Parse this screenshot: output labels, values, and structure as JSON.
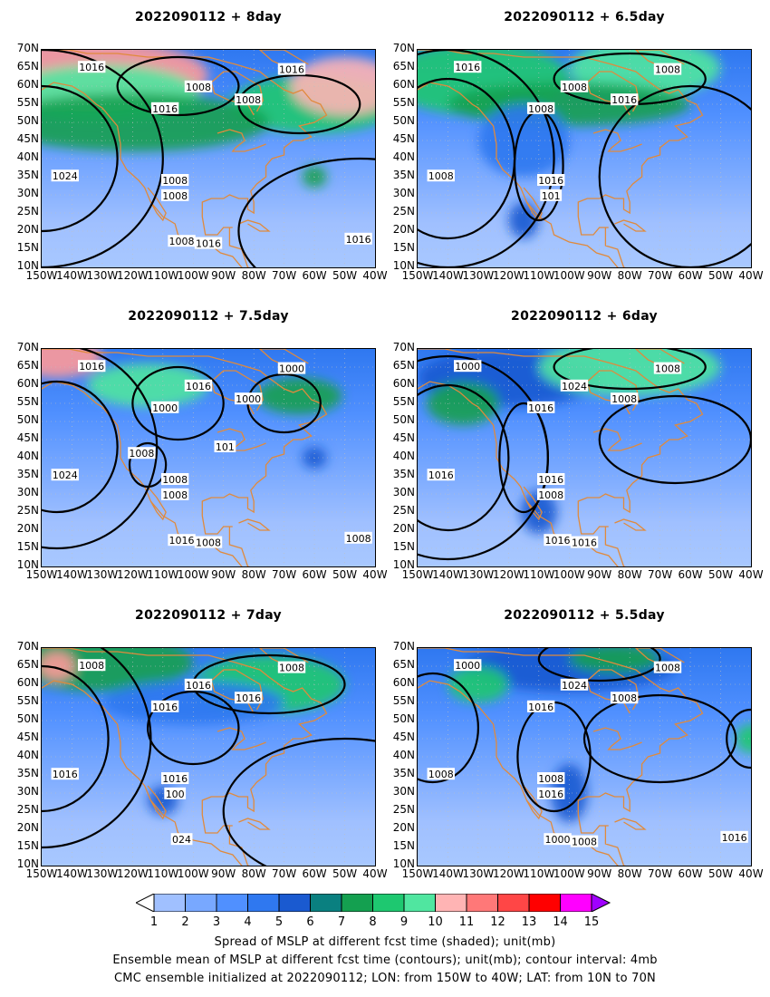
{
  "chart_data": {
    "type": "heatmap",
    "panels": [
      {
        "title": "2022090112 + 8day",
        "contour_labels": [
          "1016",
          "1008",
          "1016",
          "1008",
          "1016",
          "1024",
          "1008",
          "1008",
          "1008",
          "1016",
          "1016"
        ]
      },
      {
        "title": "2022090112 + 6.5day",
        "contour_labels": [
          "1016",
          "1008",
          "1008",
          "1016",
          "1008",
          "1008",
          "1016",
          "101"
        ]
      },
      {
        "title": "2022090112 + 7.5day",
        "contour_labels": [
          "1016",
          "1016",
          "1000",
          "1000",
          "1000",
          "1024",
          "1008",
          "1008",
          "1016",
          "1008",
          "1008",
          "1008",
          "101"
        ]
      },
      {
        "title": "2022090112 + 6day",
        "contour_labels": [
          "1000",
          "1024",
          "1016",
          "1008",
          "1008",
          "1016",
          "1016",
          "1008",
          "1016",
          "1016"
        ]
      },
      {
        "title": "2022090112 + 7day",
        "contour_labels": [
          "1008",
          "1016",
          "1016",
          "1016",
          "1008",
          "1016",
          "1016",
          "100",
          "024"
        ]
      },
      {
        "title": "2022090112 + 5.5day",
        "contour_labels": [
          "1000",
          "1024",
          "1016",
          "1008",
          "1008",
          "1008",
          "1008",
          "1016",
          "1000",
          "1008",
          "1016"
        ]
      }
    ],
    "lon_ticks": [
      "150W",
      "140W",
      "130W",
      "120W",
      "110W",
      "100W",
      "90W",
      "80W",
      "70W",
      "60W",
      "50W",
      "40W"
    ],
    "lat_ticks": [
      "70N",
      "65N",
      "60N",
      "55N",
      "50N",
      "45N",
      "40N",
      "35N",
      "30N",
      "25N",
      "20N",
      "15N",
      "10N"
    ],
    "lon_range": [
      -150,
      -40
    ],
    "lat_range": [
      10,
      70
    ],
    "colorbar": {
      "labels": [
        "1",
        "2",
        "3",
        "4",
        "5",
        "6",
        "7",
        "8",
        "9",
        "10",
        "11",
        "12",
        "13",
        "14",
        "15"
      ],
      "colors": [
        "#ffffff",
        "#a0c0ff",
        "#78a8ff",
        "#5090ff",
        "#2f78f0",
        "#1a5ad0",
        "#0a8080",
        "#14a050",
        "#1ec870",
        "#50e6a0",
        "#ffb4b4",
        "#ff7878",
        "#ff4646",
        "#ff0000",
        "#ff00ff",
        "#a000ff"
      ]
    },
    "footer": [
      "Spread of MSLP at different fcst time (shaded); unit(mb)",
      "Ensemble mean of MSLP at different fcst time (contours); unit(mb); contour interval: 4mb",
      "CMC ensemble initialized at 2022090112; LON: from 150W to 40W; LAT: from 10N to 70N"
    ]
  }
}
